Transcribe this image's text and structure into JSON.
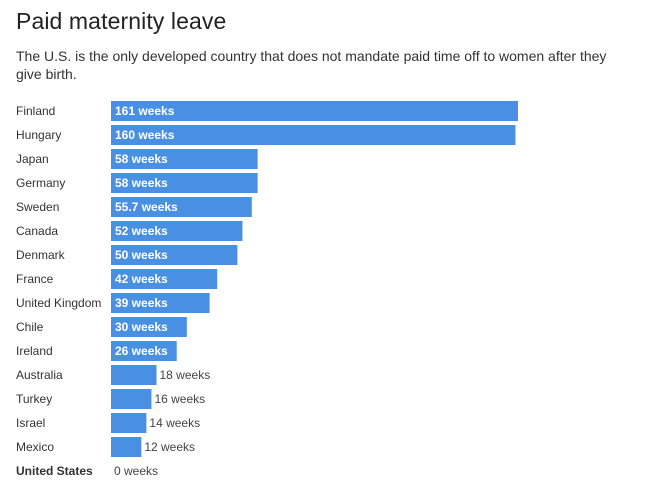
{
  "chart_data": {
    "type": "bar",
    "orientation": "horizontal",
    "title": "Paid maternity leave",
    "subtitle": "The U.S. is the only developed country that does not mandate paid time off to women after they give birth.",
    "categories": [
      "Finland",
      "Hungary",
      "Japan",
      "Germany",
      "Sweden",
      "Canada",
      "Denmark",
      "France",
      "United Kingdom",
      "Chile",
      "Ireland",
      "Australia",
      "Turkey",
      "Israel",
      "Mexico",
      "United States"
    ],
    "values": [
      161,
      160,
      58,
      58,
      55.7,
      52,
      50,
      42,
      39,
      30,
      26,
      18,
      16,
      14,
      12,
      0
    ],
    "data_labels": [
      "161 weeks",
      "160 weeks",
      "58 weeks",
      "58 weeks",
      "55.7 weeks",
      "52 weeks",
      "50 weeks",
      "42 weeks",
      "39 weeks",
      "30 weeks",
      "26 weeks",
      "18 weeks",
      "16 weeks",
      "14 weeks",
      "12 weeks",
      "0 weeks"
    ],
    "highlighted_category": "United States",
    "bar_color": "#4a90e2",
    "label_inside_color": "#ffffff",
    "label_outside_color": "#444444",
    "xlim": [
      0,
      161
    ],
    "grid": false,
    "legend": "none"
  }
}
